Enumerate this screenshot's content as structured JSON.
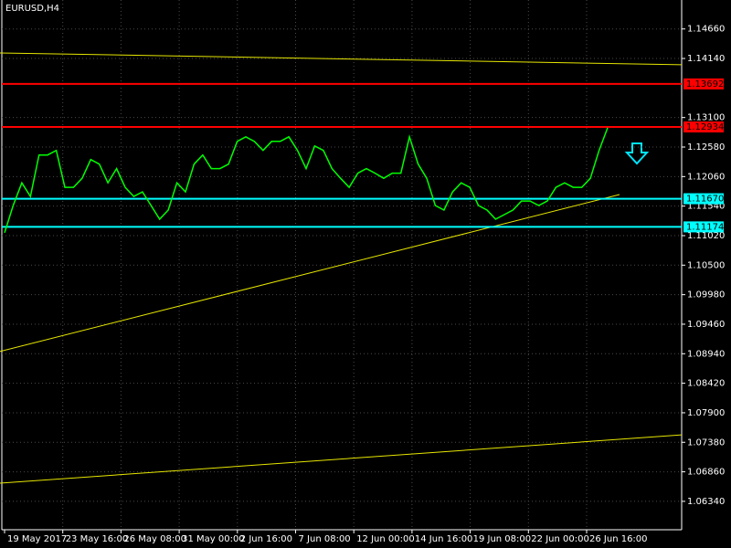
{
  "chart_data": {
    "type": "line",
    "title": "EURUSD,H4",
    "series": [
      {
        "name": "EURUSD",
        "color": "#00ff00",
        "values": [
          1.1107,
          1.1155,
          1.1195,
          1.1171,
          1.1244,
          1.1244,
          1.1252,
          1.1187,
          1.1187,
          1.1203,
          1.1236,
          1.1228,
          1.1195,
          1.122,
          1.1187,
          1.1171,
          1.1179,
          1.1155,
          1.1131,
          1.1147,
          1.1195,
          1.1179,
          1.1228,
          1.1244,
          1.122,
          1.122,
          1.1228,
          1.1268,
          1.1276,
          1.1268,
          1.1252,
          1.1268,
          1.1268,
          1.1276,
          1.1252,
          1.122,
          1.126,
          1.1252,
          1.122,
          1.1203,
          1.1187,
          1.1212,
          1.122,
          1.1212,
          1.1203,
          1.1212,
          1.1212,
          1.1276,
          1.1228,
          1.1203,
          1.1155,
          1.1147,
          1.1179,
          1.1195,
          1.1187,
          1.1155,
          1.1147,
          1.1131,
          1.1139,
          1.1147,
          1.1163,
          1.1163,
          1.1155,
          1.1163,
          1.1187,
          1.1195,
          1.1187,
          1.1187,
          1.1203,
          1.1252,
          1.1292
        ]
      }
    ],
    "x_labels": [
      "19 May 2017",
      "23 May 16:00",
      "26 May 08:00",
      "31 May 00:00",
      "2 Jun 16:00",
      "7 Jun 08:00",
      "12 Jun 00:00",
      "14 Jun 16:00",
      "19 Jun 08:00",
      "22 Jun 00:00",
      "26 Jun 16:00"
    ],
    "ylim": [
      1.0584,
      1.1517
    ],
    "yticks": [
      {
        "value": 1.1466,
        "label": "1.14660"
      },
      {
        "value": 1.1414,
        "label": "1.14140"
      },
      {
        "value": 1.131,
        "label": "1.13100"
      },
      {
        "value": 1.1258,
        "label": "1.12580"
      },
      {
        "value": 1.1206,
        "label": "1.12060"
      },
      {
        "value": 1.1154,
        "label": "1.11540"
      },
      {
        "value": 1.1102,
        "label": "1.11020"
      },
      {
        "value": 1.105,
        "label": "1.10500"
      },
      {
        "value": 1.0998,
        "label": "1.09980"
      },
      {
        "value": 1.0946,
        "label": "1.09460"
      },
      {
        "value": 1.0894,
        "label": "1.08940"
      },
      {
        "value": 1.0842,
        "label": "1.08420"
      },
      {
        "value": 1.079,
        "label": "1.07900"
      },
      {
        "value": 1.0738,
        "label": "1.07380"
      },
      {
        "value": 1.0686,
        "label": "1.06860"
      },
      {
        "value": 1.0634,
        "label": "1.06340"
      }
    ],
    "levels": [
      {
        "value": 1.13692,
        "label": "1.13692",
        "color": "#ff0000"
      },
      {
        "value": 1.12934,
        "label": "1.12934",
        "color": "#ff0000"
      },
      {
        "value": 1.1167,
        "label": "1.11670",
        "color": "#00ffff"
      },
      {
        "value": 1.11174,
        "label": "1.11174",
        "color": "#00ffff"
      }
    ],
    "trendlines": [
      {
        "color": "#e6e600",
        "values": [
          1.14238,
          1.14029
        ]
      },
      {
        "color": "#e6e600",
        "values": [
          1.0898,
          1.11744
        ]
      },
      {
        "color": "#e6e600",
        "values": [
          1.0666,
          1.0751
        ]
      }
    ],
    "grid": true
  }
}
